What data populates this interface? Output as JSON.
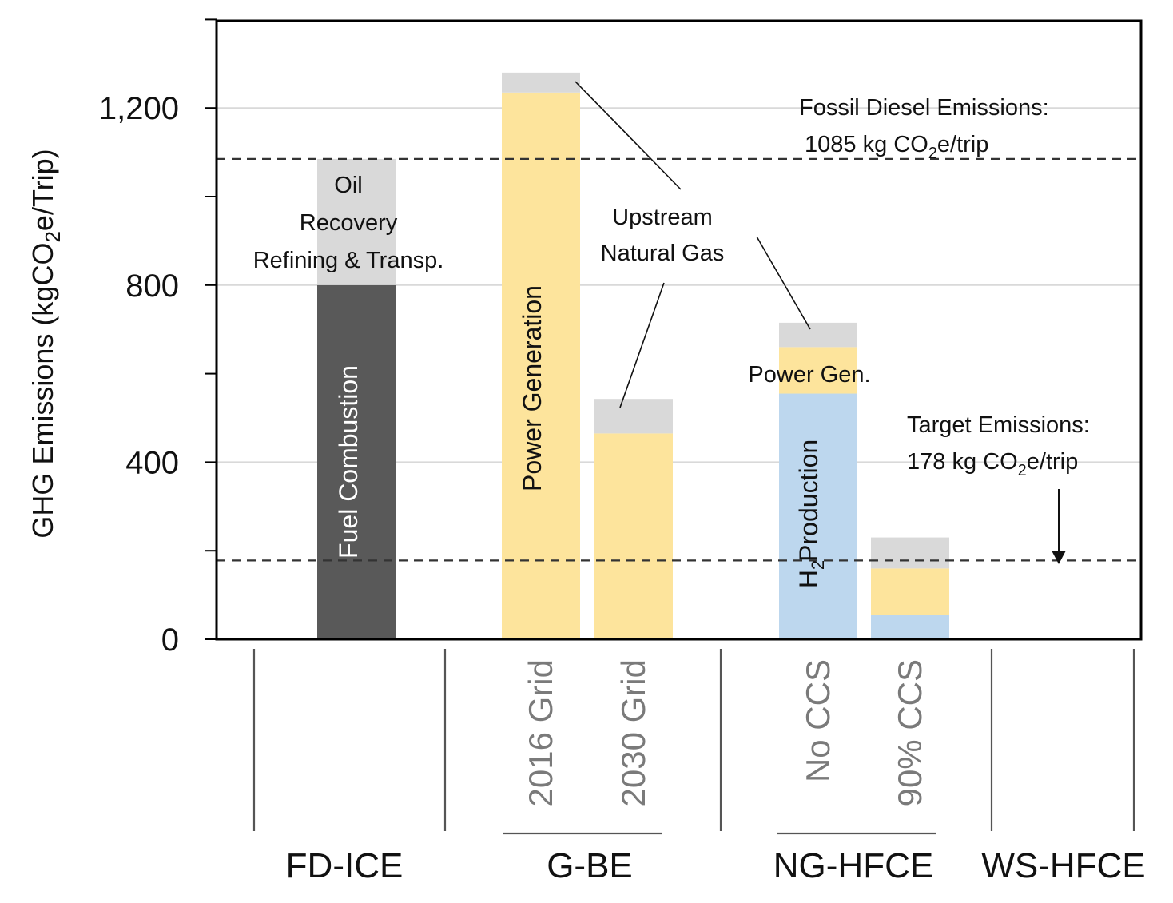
{
  "chart_data": {
    "type": "bar",
    "stacked": true,
    "ylabel": "GHG Emissions (kgCO2e/Trip)",
    "ylim": [
      0,
      1400
    ],
    "yticks": [
      0,
      400,
      800,
      1200
    ],
    "ytick_labels": [
      "0",
      "400",
      "800",
      "1,200"
    ],
    "grid": true,
    "colors": {
      "fuel_combustion": "#595959",
      "oil_recovery": "#d9d9d9",
      "upstream_gas": "#d9d9d9",
      "power": "#fde49c",
      "h2": "#bdd7ee"
    },
    "groups": [
      {
        "name": "FD-ICE",
        "bars": [
          {
            "label": "",
            "segments": [
              {
                "key": "fuel_combustion",
                "value": 800
              },
              {
                "key": "oil_recovery",
                "value": 285
              }
            ]
          }
        ]
      },
      {
        "name": "G-BE",
        "bars": [
          {
            "label": "2016 Grid",
            "segments": [
              {
                "key": "power",
                "value": 1235
              },
              {
                "key": "upstream_gas",
                "value": 45
              }
            ]
          },
          {
            "label": "2030 Grid",
            "segments": [
              {
                "key": "power",
                "value": 465
              },
              {
                "key": "upstream_gas",
                "value": 78
              }
            ]
          }
        ]
      },
      {
        "name": "NG-HFCE",
        "bars": [
          {
            "label": "No CCS",
            "segments": [
              {
                "key": "h2",
                "value": 555
              },
              {
                "key": "power",
                "value": 105
              },
              {
                "key": "upstream_gas",
                "value": 55
              }
            ]
          },
          {
            "label": "90% CCS",
            "segments": [
              {
                "key": "h2",
                "value": 55
              },
              {
                "key": "power",
                "value": 105
              },
              {
                "key": "upstream_gas",
                "value": 70
              }
            ]
          }
        ]
      },
      {
        "name": "WS-HFCE",
        "bars": [
          {
            "label": "",
            "segments": [
              {
                "key": "power",
                "value": 2
              }
            ]
          }
        ]
      }
    ],
    "reference_lines": [
      {
        "name": "Fossil Diesel Emissions",
        "value": 1085
      },
      {
        "name": "Target Emissions",
        "value": 178
      }
    ],
    "annotations": {
      "oil_recovery": [
        "Oil",
        "Recovery",
        "Refining & Transp."
      ],
      "fuel_combustion": "Fuel  Combustion",
      "power_generation": "Power Generation",
      "upstream_gas": [
        "Upstream",
        "Natural Gas"
      ],
      "power_gen_short": "Power Gen.",
      "h2_production_sub": "2",
      "h2_production_main": "Production",
      "h2_production_prefix": "H",
      "fossil_line1": "Fossil Diesel Emissions:",
      "fossil_line2_pre": "1085 kg CO",
      "fossil_line2_sub": "2",
      "fossil_line2_post": "e/trip",
      "target_line1": "Target Emissions:",
      "target_line2_pre": "178 kg CO",
      "target_line2_sub": "2",
      "target_line2_post": "e/trip"
    },
    "ylabel_parts": {
      "pre": "GHG Emissions (kgCO",
      "sub": "2",
      "post": "e/Trip)"
    }
  }
}
